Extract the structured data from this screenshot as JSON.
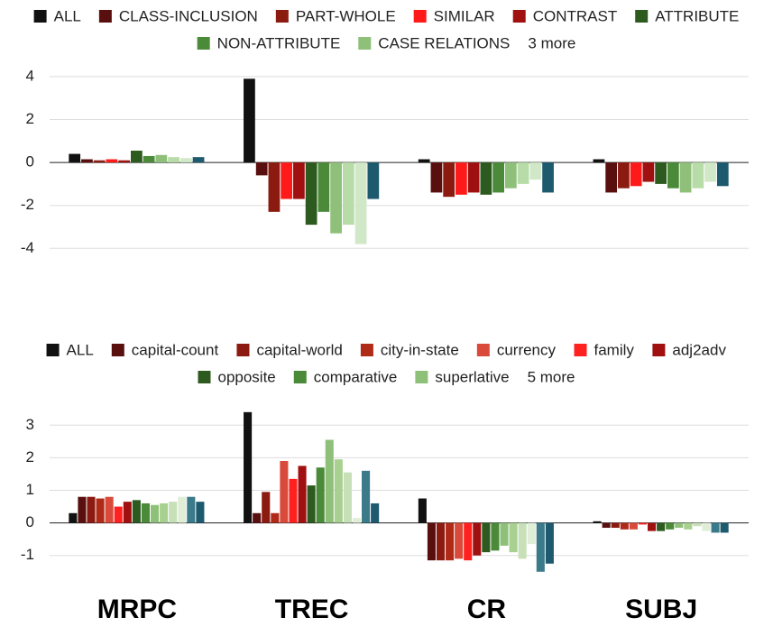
{
  "chart_data": [
    {
      "type": "bar",
      "legend_more": "3 more",
      "ylim": [
        -5.5,
        4.5
      ],
      "yticks": [
        4,
        2,
        0,
        -2,
        -4
      ],
      "grid": true,
      "series": [
        {
          "name": "ALL",
          "color": "#111111",
          "values": [
            0.4,
            3.9,
            0.15,
            0.15
          ]
        },
        {
          "name": "CLASS-INCLUSION",
          "color": "#5a0f0f",
          "values": [
            0.15,
            -0.6,
            -1.4,
            -1.4
          ]
        },
        {
          "name": "PART-WHOLE",
          "color": "#8b1a10",
          "values": [
            0.1,
            -2.3,
            -1.6,
            -1.2
          ]
        },
        {
          "name": "SIMILAR",
          "color": "#ff1a1a",
          "values": [
            0.15,
            -1.7,
            -1.5,
            -1.1
          ]
        },
        {
          "name": "CONTRAST",
          "color": "#a01010",
          "values": [
            0.1,
            -1.7,
            -1.4,
            -0.9
          ]
        },
        {
          "name": "ATTRIBUTE",
          "color": "#2d5a1e",
          "values": [
            0.55,
            -2.9,
            -1.5,
            -1.0
          ]
        },
        {
          "name": "NON-ATTRIBUTE",
          "color": "#4a8a38",
          "values": [
            0.3,
            -2.3,
            -1.4,
            -1.2
          ]
        },
        {
          "name": "CASE RELATIONS",
          "color": "#8fc07a",
          "values": [
            0.35,
            -3.3,
            -1.2,
            -1.4
          ]
        },
        {
          "color": "#b8dca8",
          "values": [
            0.25,
            -2.9,
            -1.0,
            -1.2
          ]
        },
        {
          "color": "#d0e8c8",
          "values": [
            0.2,
            -3.8,
            -0.8,
            -0.9
          ]
        },
        {
          "color": "#1e5a6e",
          "values": [
            0.25,
            -1.7,
            -1.4,
            -1.1
          ]
        }
      ]
    },
    {
      "type": "bar",
      "legend_more": "5 more",
      "categories": [
        "MRPC",
        "TREC",
        "CR",
        "SUBJ"
      ],
      "ylim": [
        -1.7,
        3.7
      ],
      "yticks": [
        3,
        2,
        1,
        0,
        -1
      ],
      "grid": true,
      "series": [
        {
          "name": "ALL",
          "color": "#111111",
          "values": [
            0.3,
            3.4,
            0.75,
            0.05
          ]
        },
        {
          "name": "capital-count",
          "color": "#5a0f0f",
          "values": [
            0.8,
            0.3,
            -1.15,
            -0.15
          ]
        },
        {
          "name": "capital-world",
          "color": "#8b1a10",
          "values": [
            0.8,
            0.95,
            -1.15,
            -0.15
          ]
        },
        {
          "name": "city-in-state",
          "color": "#b02a18",
          "values": [
            0.75,
            0.3,
            -1.15,
            -0.2
          ]
        },
        {
          "name": "currency",
          "color": "#d94a3a",
          "values": [
            0.8,
            1.9,
            -1.1,
            -0.2
          ]
        },
        {
          "name": "family",
          "color": "#ff2020",
          "values": [
            0.5,
            1.35,
            -1.15,
            -0.05
          ]
        },
        {
          "name": "adj2adv",
          "color": "#a01010",
          "values": [
            0.65,
            1.75,
            -1.0,
            -0.25
          ]
        },
        {
          "name": "opposite",
          "color": "#2d5a1e",
          "values": [
            0.7,
            1.15,
            -0.9,
            -0.25
          ]
        },
        {
          "name": "comparative",
          "color": "#4a8a38",
          "values": [
            0.6,
            1.7,
            -0.85,
            -0.2
          ]
        },
        {
          "name": "superlative",
          "color": "#8fc07a",
          "values": [
            0.55,
            2.55,
            -0.7,
            -0.15
          ]
        },
        {
          "color": "#a8d090",
          "values": [
            0.6,
            1.95,
            -0.9,
            -0.2
          ]
        },
        {
          "color": "#c8e0b8",
          "values": [
            0.65,
            1.55,
            -1.1,
            -0.1
          ]
        },
        {
          "color": "#e0eed8",
          "values": [
            0.8,
            0.15,
            -0.65,
            -0.25
          ]
        },
        {
          "color": "#3a7a8a",
          "values": [
            0.8,
            1.6,
            -1.5,
            -0.3
          ]
        },
        {
          "color": "#1e5a6e",
          "values": [
            0.65,
            0.6,
            -1.25,
            -0.3
          ]
        }
      ]
    }
  ]
}
